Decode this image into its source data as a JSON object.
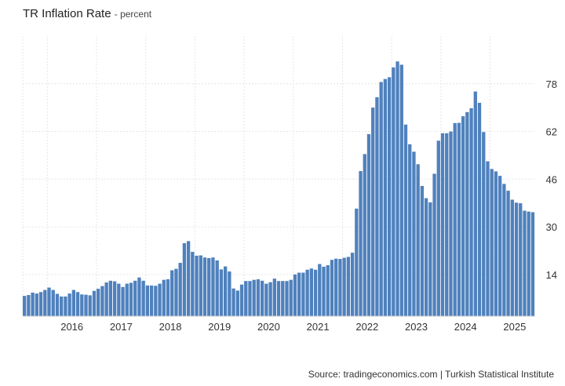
{
  "chart_data": {
    "type": "bar",
    "title": "TR Inflation Rate",
    "subtitle": "percent",
    "source": "Source: tradingeconomics.com | Turkish Statistical Institute",
    "xlabel": "",
    "ylabel": "",
    "ylim": [
      0,
      94
    ],
    "yticks": [
      14,
      30,
      46,
      62,
      78
    ],
    "xticks": [
      "2016",
      "2017",
      "2018",
      "2019",
      "2020",
      "2021",
      "2022",
      "2023",
      "2024",
      "2025"
    ],
    "bar_color": "#4f81bd",
    "start": "2015-07",
    "series": [
      {
        "name": "TR Inflation Rate",
        "values": [
          6.8,
          7.1,
          7.9,
          7.6,
          8.1,
          8.8,
          9.6,
          8.8,
          7.5,
          6.6,
          6.6,
          7.6,
          8.8,
          8.1,
          7.3,
          7.2,
          7.0,
          8.5,
          9.2,
          10.1,
          11.3,
          11.9,
          11.7,
          10.9,
          9.8,
          10.9,
          11.2,
          11.9,
          12.98,
          11.9,
          10.3,
          10.3,
          10.2,
          10.9,
          12.2,
          12.4,
          15.4,
          15.9,
          17.9,
          24.5,
          25.2,
          21.6,
          20.3,
          20.4,
          19.7,
          19.5,
          19.7,
          18.7,
          15.7,
          16.7,
          15.0,
          9.3,
          8.6,
          10.6,
          11.8,
          11.8,
          12.2,
          12.4,
          11.9,
          10.9,
          11.4,
          12.6,
          11.8,
          11.8,
          11.8,
          12.2,
          14.0,
          14.6,
          14.6,
          15.6,
          16.0,
          15.6,
          17.5,
          16.6,
          17.1,
          18.9,
          19.3,
          19.2,
          19.6,
          19.9,
          21.3,
          36.1,
          48.7,
          54.4,
          61.1,
          70.0,
          73.5,
          78.6,
          79.6,
          80.2,
          83.5,
          85.5,
          84.4,
          64.3,
          57.7,
          55.2,
          51.0,
          43.7,
          39.6,
          38.2,
          47.8,
          58.9,
          61.4,
          61.4,
          61.98,
          64.8,
          64.9,
          67.1,
          68.5,
          69.8,
          75.4,
          71.6,
          61.8,
          51.97,
          49.4,
          48.6,
          47.1,
          44.4,
          42.1,
          39.1,
          38.1,
          37.9,
          35.4,
          35.1,
          34.9
        ]
      }
    ]
  }
}
